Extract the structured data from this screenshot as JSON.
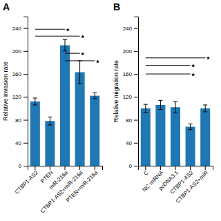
{
  "chart_data": [
    {
      "type": "bar",
      "title": "A",
      "categories": [
        "CTBP1-AS2",
        "PTEN",
        "miR-216a",
        "CTBP1-AS2+miR-216a",
        "PTEN+miR-216a"
      ],
      "values": [
        112,
        78,
        210,
        163,
        122
      ],
      "errors": [
        6,
        7,
        10,
        20,
        5
      ],
      "y_label": "Relative invasion rate",
      "color": "#1f77b4",
      "ylim": [
        0,
        260
      ],
      "yticks": [
        0,
        40,
        80,
        120,
        160,
        200,
        240
      ],
      "annotations": [
        {
          "text": "*",
          "from": "CTBP1-AS2",
          "to": "miR-216a",
          "y": 238
        },
        {
          "text": "*",
          "from": "CTBP1-AS2",
          "to": "CTBP1-AS2+miR-216a",
          "y": 226
        },
        {
          "text": "*",
          "from": "miR-216a",
          "to": "CTBP1-AS2+miR-216a",
          "y": 196
        },
        {
          "text": "*",
          "from": "miR-216a",
          "to": "PTEN+miR-216a",
          "y": 183
        }
      ]
    },
    {
      "type": "bar",
      "title": "B",
      "categories": [
        "C",
        "NC miRNA",
        "pcDNA3.1",
        "CTBP1-AS2",
        "CTBP1-AS2+miR"
      ],
      "values": [
        100,
        106,
        102,
        68,
        100
      ],
      "errors": [
        7,
        8,
        10,
        5,
        6
      ],
      "y_label": "Relative migration rate",
      "color": "#1f77b4",
      "ylim": [
        0,
        260
      ],
      "yticks": [
        0,
        40,
        80,
        120,
        160,
        200,
        240
      ],
      "annotations": [
        {
          "text": "*",
          "from": "C",
          "to": "CTBP1-AS2+miR",
          "y": 188
        },
        {
          "text": "*",
          "from": "C",
          "to": "CTBP1-AS2",
          "y": 175
        },
        {
          "text": "*",
          "from": "C",
          "to": "CTBP1-AS2",
          "y": 160
        }
      ]
    }
  ]
}
